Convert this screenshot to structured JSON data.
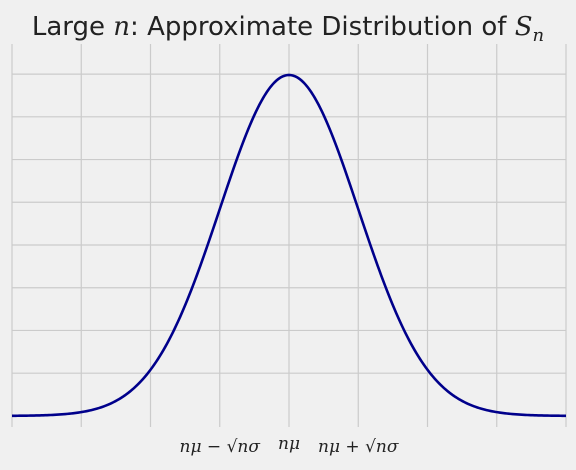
{
  "chart_data": {
    "type": "line",
    "title": {
      "prefix": "Large ",
      "var": "n",
      "mid": ": Approximate Distribution of ",
      "sym": "S",
      "sub": "n"
    },
    "xlabel": "",
    "ylabel": "",
    "grid": true,
    "xlim": [
      -4.0,
      4.0
    ],
    "ylim": [
      -0.02,
      0.42
    ],
    "mean": 0,
    "sd": 1,
    "x_grid": [
      -4,
      -3,
      -2,
      -1,
      0,
      1,
      2,
      3,
      4
    ],
    "y_grid": [
      0.0,
      0.05,
      0.1,
      0.15,
      0.2,
      0.25,
      0.3,
      0.35,
      0.4
    ],
    "x_ticks": [
      {
        "value": -1,
        "label": "nμ − √nσ"
      },
      {
        "value": 0,
        "label": "nμ"
      },
      {
        "value": 1,
        "label": "nμ + √nσ"
      }
    ],
    "colors": {
      "curve": "#00008b",
      "grid": "#cbcbcb",
      "background": "#f0f0f0"
    }
  }
}
